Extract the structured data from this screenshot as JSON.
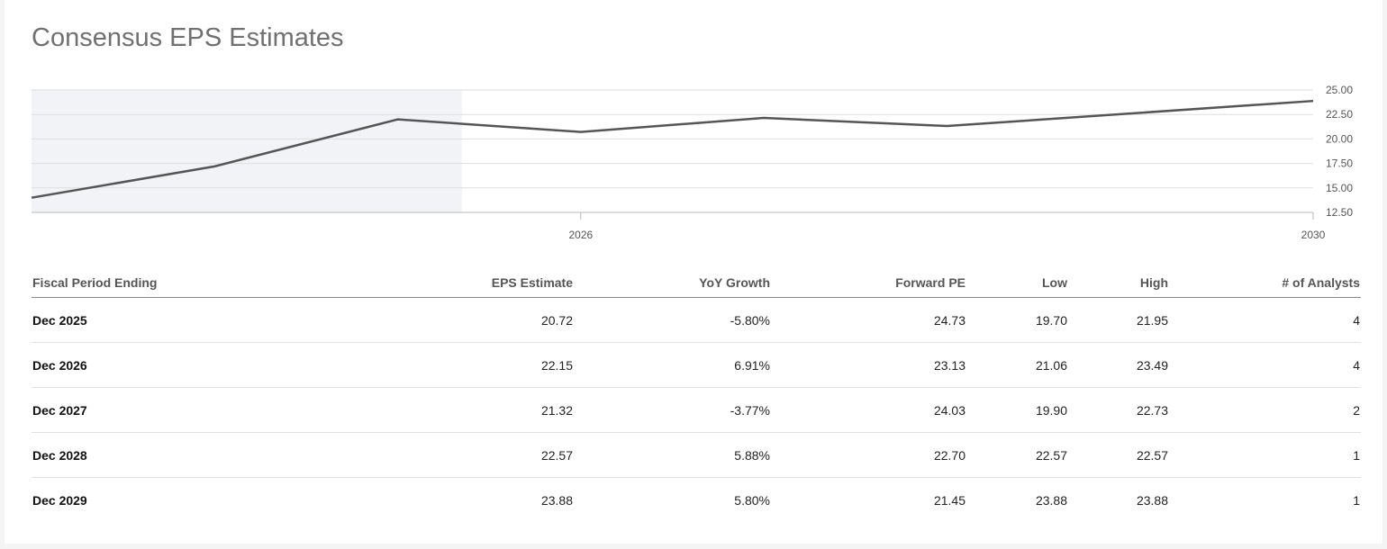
{
  "title": "Consensus EPS Estimates",
  "chart_data": {
    "type": "line",
    "series": [
      {
        "values": [
          14.0,
          17.2,
          22.0,
          20.72,
          22.15,
          21.32,
          23.88
        ]
      }
    ],
    "x": [
      2023,
      2024,
      2025,
      2026,
      2027,
      2028,
      2030
    ],
    "x_ticks": [
      "2026",
      "2030"
    ],
    "y_ticks": [
      "25.00",
      "22.50",
      "20.00",
      "17.50",
      "15.00",
      "12.50"
    ],
    "ylim": [
      12.5,
      25
    ],
    "grid": true,
    "line_color": "#555555",
    "shade_color": "#f2f3f6"
  },
  "table": {
    "headers": [
      "Fiscal Period Ending",
      "EPS Estimate",
      "YoY Growth",
      "Forward PE",
      "Low",
      "High",
      "# of Analysts"
    ],
    "rows": [
      [
        "Dec 2025",
        "20.72",
        "-5.80%",
        "24.73",
        "19.70",
        "21.95",
        "4"
      ],
      [
        "Dec 2026",
        "22.15",
        "6.91%",
        "23.13",
        "21.06",
        "23.49",
        "4"
      ],
      [
        "Dec 2027",
        "21.32",
        "-3.77%",
        "24.03",
        "19.90",
        "22.73",
        "2"
      ],
      [
        "Dec 2028",
        "22.57",
        "5.88%",
        "22.70",
        "22.57",
        "22.57",
        "1"
      ],
      [
        "Dec 2029",
        "23.88",
        "5.80%",
        "21.45",
        "23.88",
        "23.88",
        "1"
      ]
    ]
  }
}
